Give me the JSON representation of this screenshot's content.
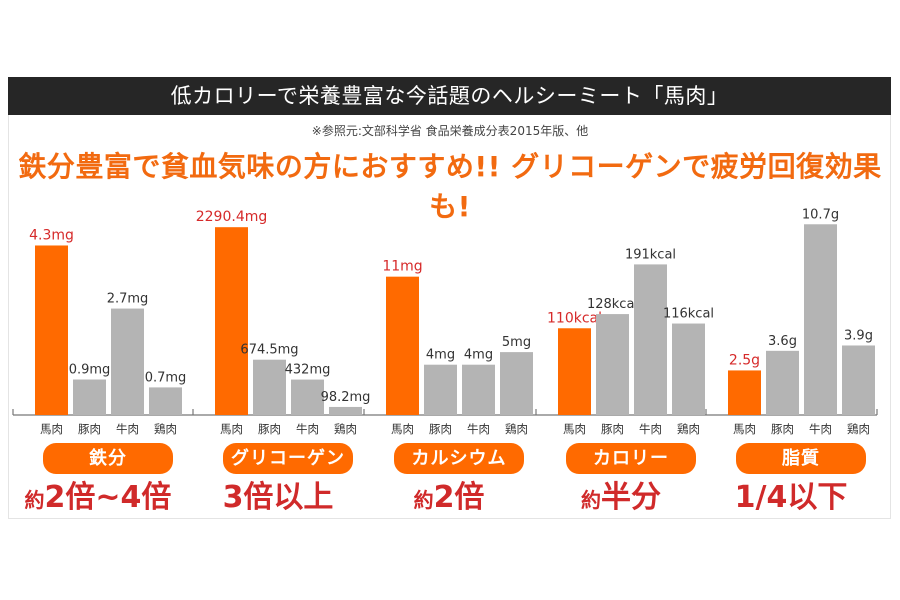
{
  "header": {
    "title": "低カロリーで栄養豊富な今話題のヘルシーミート「馬肉」",
    "source_note": "※参照元:文部科学省 食品栄養成分表2015年版、他",
    "headline": "鉄分豊富で貧血気味の方におすすめ!! グリコーゲンで疲労回復効果も!"
  },
  "colors": {
    "highlight_bar": "#ff6a00",
    "other_bar": "#b4b4b4",
    "highlight_label": "#d62a2a",
    "title_bg": "#262626",
    "headline": "#f26a10"
  },
  "chart_data": [
    {
      "type": "bar",
      "title": "鉄分",
      "categories": [
        "馬肉",
        "豚肉",
        "牛肉",
        "鶏肉"
      ],
      "values": [
        4.3,
        0.9,
        2.7,
        0.7
      ],
      "unit": "mg",
      "value_labels": [
        "4.3mg",
        "0.9mg",
        "2.7mg",
        "0.7mg"
      ],
      "highlight_index": 0,
      "ylim": [
        0,
        5.2
      ],
      "summary": {
        "prefix": "約",
        "main": "2倍~4倍"
      }
    },
    {
      "type": "bar",
      "title": "グリコーゲン",
      "categories": [
        "馬肉",
        "豚肉",
        "牛肉",
        "鶏肉"
      ],
      "values": [
        2290.4,
        674.5,
        432,
        98.2
      ],
      "unit": "mg",
      "value_labels": [
        "2290.4mg",
        "674.5mg",
        "432mg",
        "98.2mg"
      ],
      "highlight_index": 0,
      "ylim": [
        0,
        2500
      ],
      "summary": {
        "prefix": "",
        "main": "3倍以上"
      }
    },
    {
      "type": "bar",
      "title": "カルシウム",
      "categories": [
        "馬肉",
        "豚肉",
        "牛肉",
        "鶏肉"
      ],
      "values": [
        11,
        4,
        4,
        5
      ],
      "unit": "mg",
      "value_labels": [
        "11mg",
        "4mg",
        "4mg",
        "5mg"
      ],
      "highlight_index": 0,
      "ylim": [
        0,
        16.3
      ],
      "summary": {
        "prefix": "約",
        "main": "2倍"
      }
    },
    {
      "type": "bar",
      "title": "カロリー",
      "categories": [
        "馬肉",
        "豚肉",
        "牛肉",
        "鶏肉"
      ],
      "values": [
        110,
        128,
        191,
        116
      ],
      "unit": "kcal",
      "value_labels": [
        "110kcal",
        "128kcal",
        "191kcal",
        "116kcal"
      ],
      "highlight_index": 0,
      "ylim": [
        0,
        260
      ],
      "summary": {
        "prefix": "約",
        "main": "半分"
      }
    },
    {
      "type": "bar",
      "title": "脂質",
      "categories": [
        "馬肉",
        "豚肉",
        "牛肉",
        "鶏肉"
      ],
      "values": [
        2.5,
        3.6,
        10.7,
        3.9
      ],
      "unit": "g",
      "value_labels": [
        "2.5g",
        "3.6g",
        "10.7g",
        "3.9g"
      ],
      "highlight_index": 0,
      "ylim": [
        0,
        11.5
      ],
      "summary": {
        "prefix": "",
        "main": "1/4以下"
      }
    }
  ]
}
